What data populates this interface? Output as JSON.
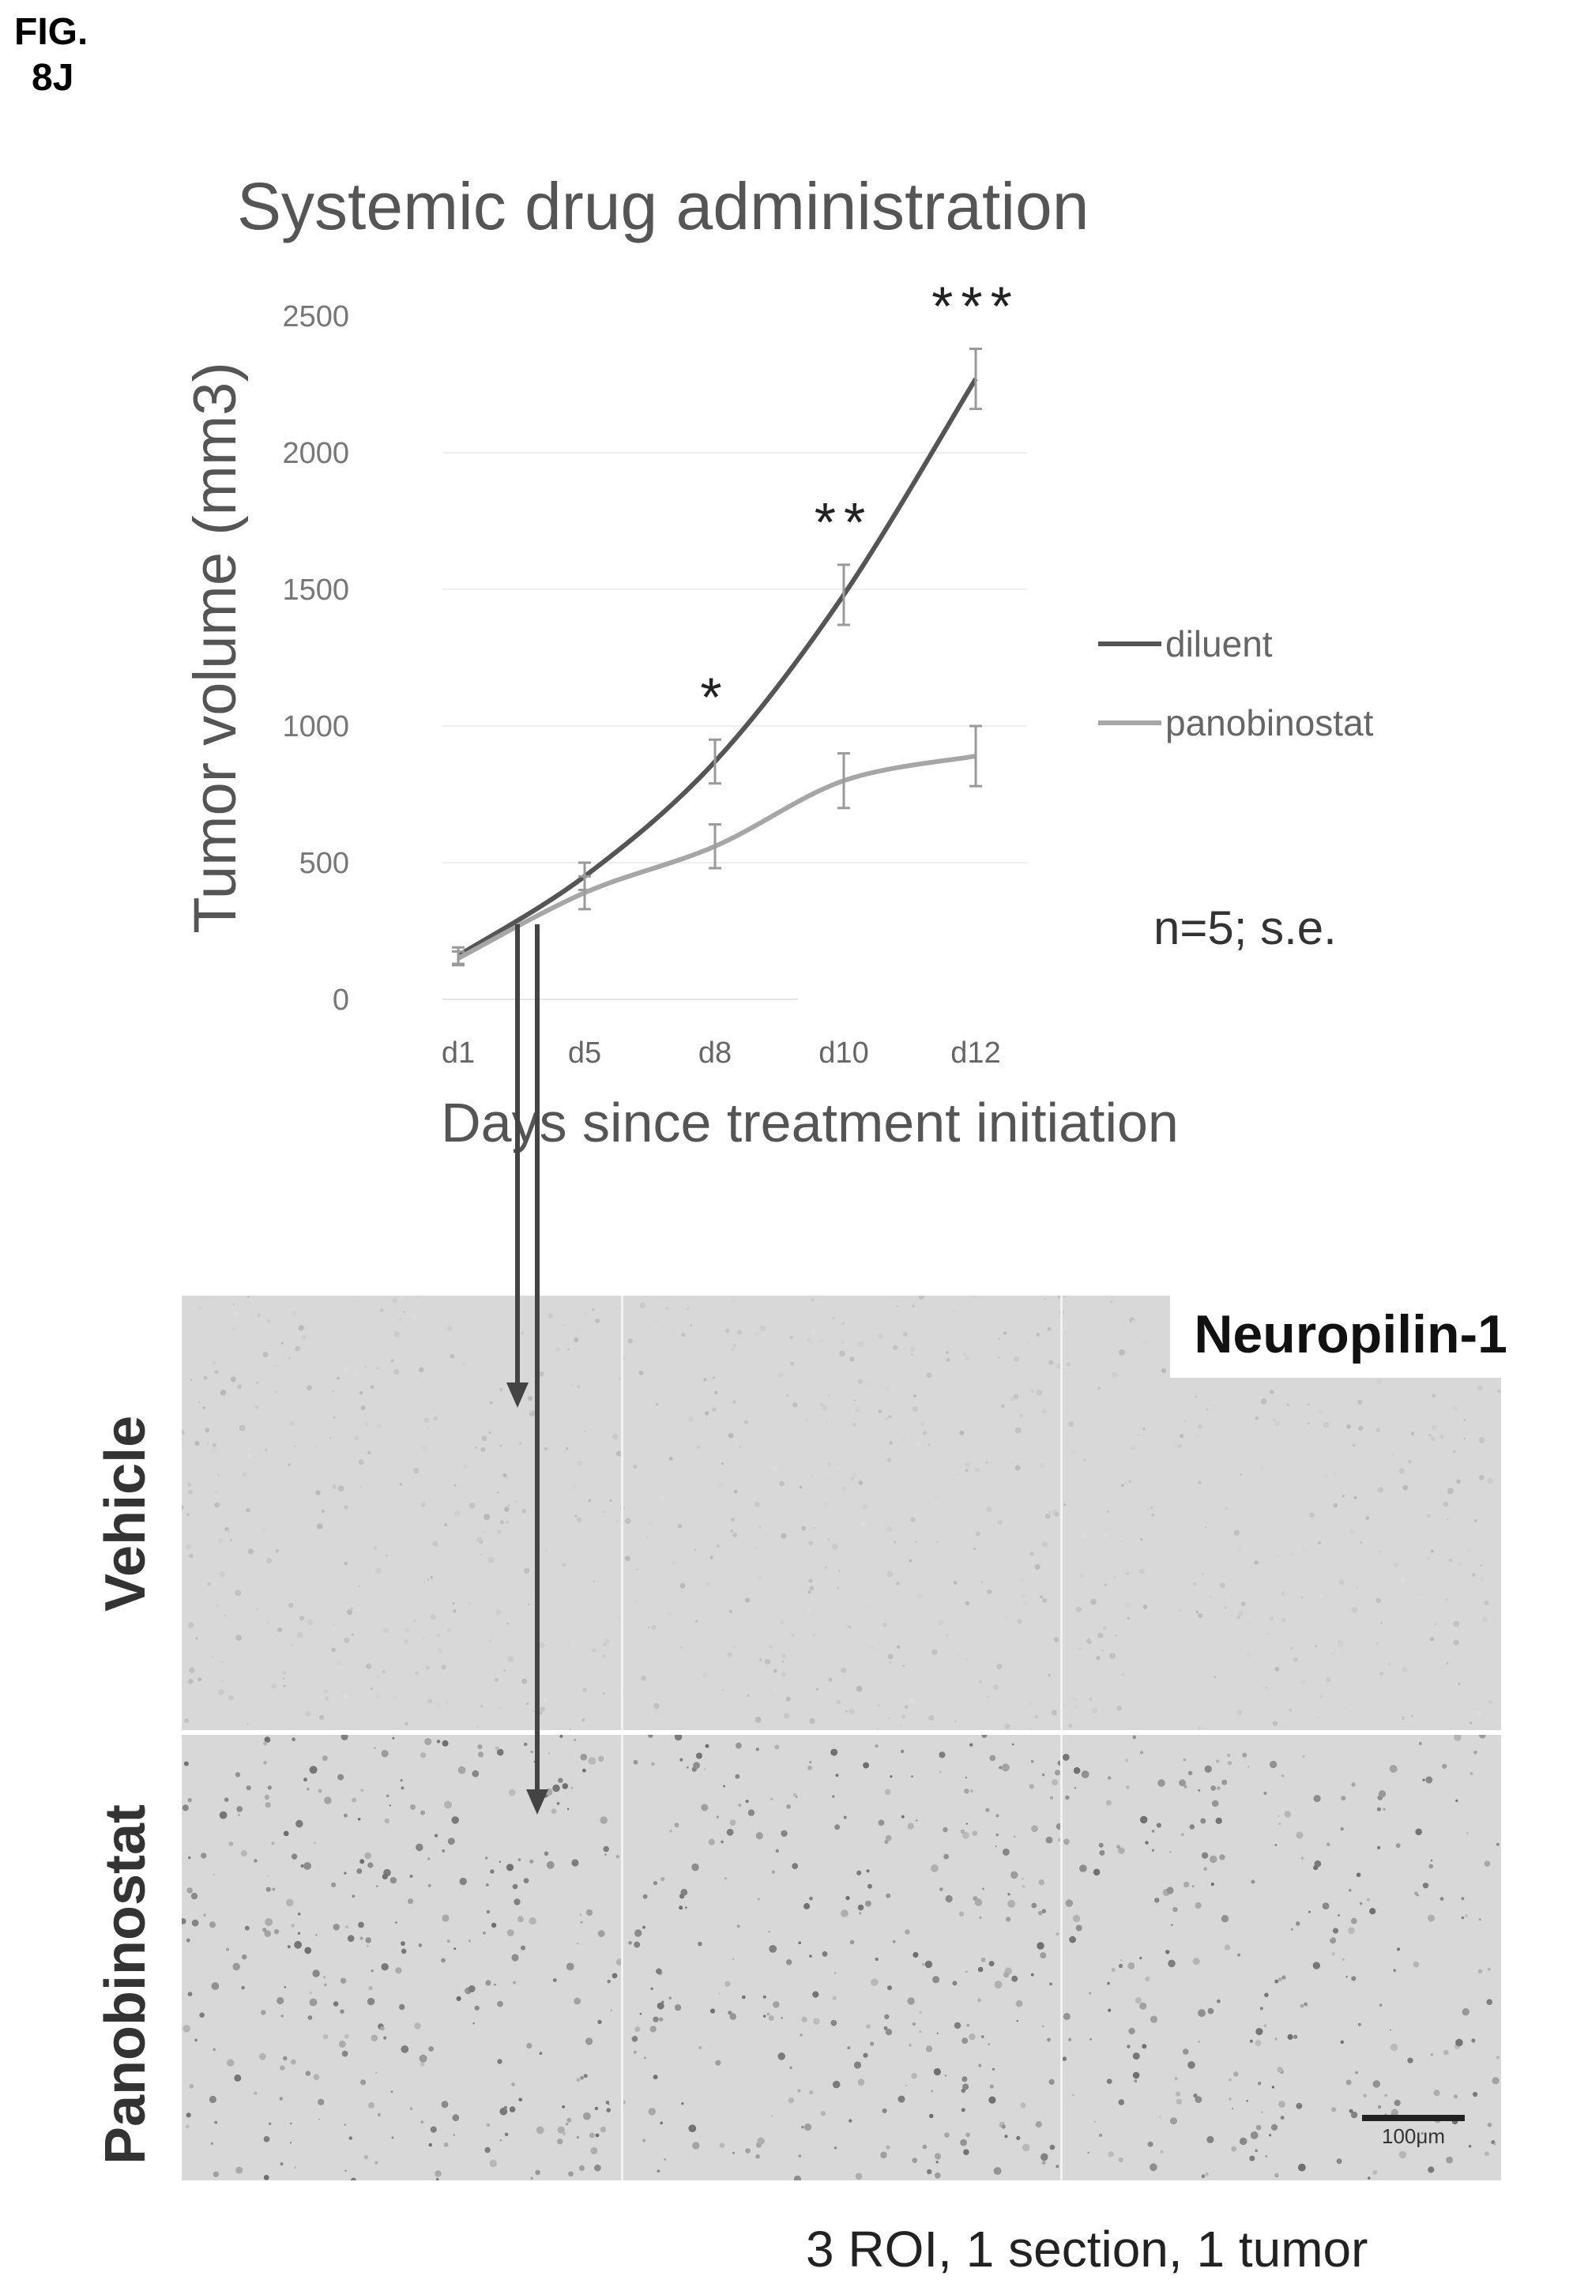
{
  "figure": {
    "label_line1": "FIG.",
    "label_line2": "8J"
  },
  "chart_data": {
    "type": "line",
    "title": "Systemic drug administration",
    "xlabel": "Days since treatment initiation",
    "ylabel": "Tumor volume (mm3)",
    "categories": [
      "d1",
      "d5",
      "d8",
      "d10",
      "d12"
    ],
    "ylim": [
      0,
      2500
    ],
    "yticks": [
      0,
      500,
      1000,
      1500,
      2000,
      2500
    ],
    "legend_position": "right",
    "series": [
      {
        "name": "diluent",
        "color": "#555555",
        "values": [
          160,
          450,
          870,
          1480,
          2270
        ],
        "errors": [
          30,
          50,
          80,
          110,
          110
        ]
      },
      {
        "name": "panobinostat",
        "color": "#a6a6a6",
        "values": [
          150,
          390,
          560,
          800,
          890
        ],
        "errors": [
          25,
          60,
          80,
          100,
          110
        ]
      }
    ],
    "significance": [
      {
        "category": "d8",
        "label": "*"
      },
      {
        "category": "d10",
        "label": "**"
      },
      {
        "category": "d12",
        "label": "***"
      }
    ],
    "annotation": "n=5; s.e."
  },
  "micrograph": {
    "stain": "Neuropilin-1",
    "rows": [
      "Vehicle",
      "Panobinostat"
    ],
    "scale_bar": "100μm",
    "footnote": "3 ROI, 1 section, 1 tumor"
  }
}
